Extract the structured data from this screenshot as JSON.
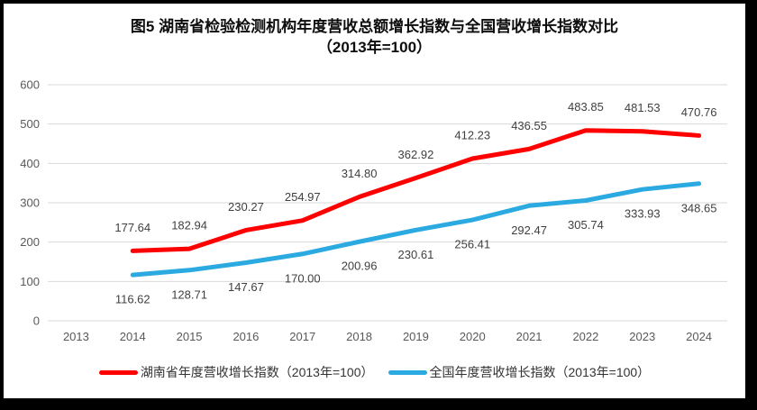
{
  "title": {
    "line1": "图5 湖南省检验检测机构年度营收总额增长指数与全国营收增长指数对比",
    "line2": "（2013年=100）"
  },
  "chart_data": {
    "type": "line",
    "x": [
      "2013",
      "2014",
      "2015",
      "2016",
      "2017",
      "2018",
      "2019",
      "2020",
      "2021",
      "2022",
      "2023",
      "2024"
    ],
    "series": [
      {
        "name": "湖南省年度营收增长指数（2013年=100）",
        "color": "#FE0000",
        "label_position": "above",
        "values": [
          null,
          177.64,
          182.94,
          230.27,
          254.97,
          314.8,
          362.92,
          412.23,
          436.55,
          483.85,
          481.53,
          470.76
        ]
      },
      {
        "name": "全国年度营收增长指数（2013年=100）",
        "color": "#2BA9E1",
        "label_position": "below",
        "values": [
          null,
          116.62,
          128.71,
          147.67,
          170.0,
          200.96,
          230.61,
          256.41,
          292.47,
          305.74,
          333.93,
          348.65
        ]
      }
    ],
    "ylim": [
      0,
      600
    ],
    "ytick_step": 100,
    "ytick_labels": [
      "0",
      "100",
      "200",
      "300",
      "400",
      "500",
      "600"
    ],
    "grid": "horizontal-only",
    "gridline_color": "#D9D9D9",
    "tick_label_color": "#595959",
    "data_label_color": "#404040",
    "data_label_format": "2-decimals",
    "legend_position": "bottom"
  }
}
